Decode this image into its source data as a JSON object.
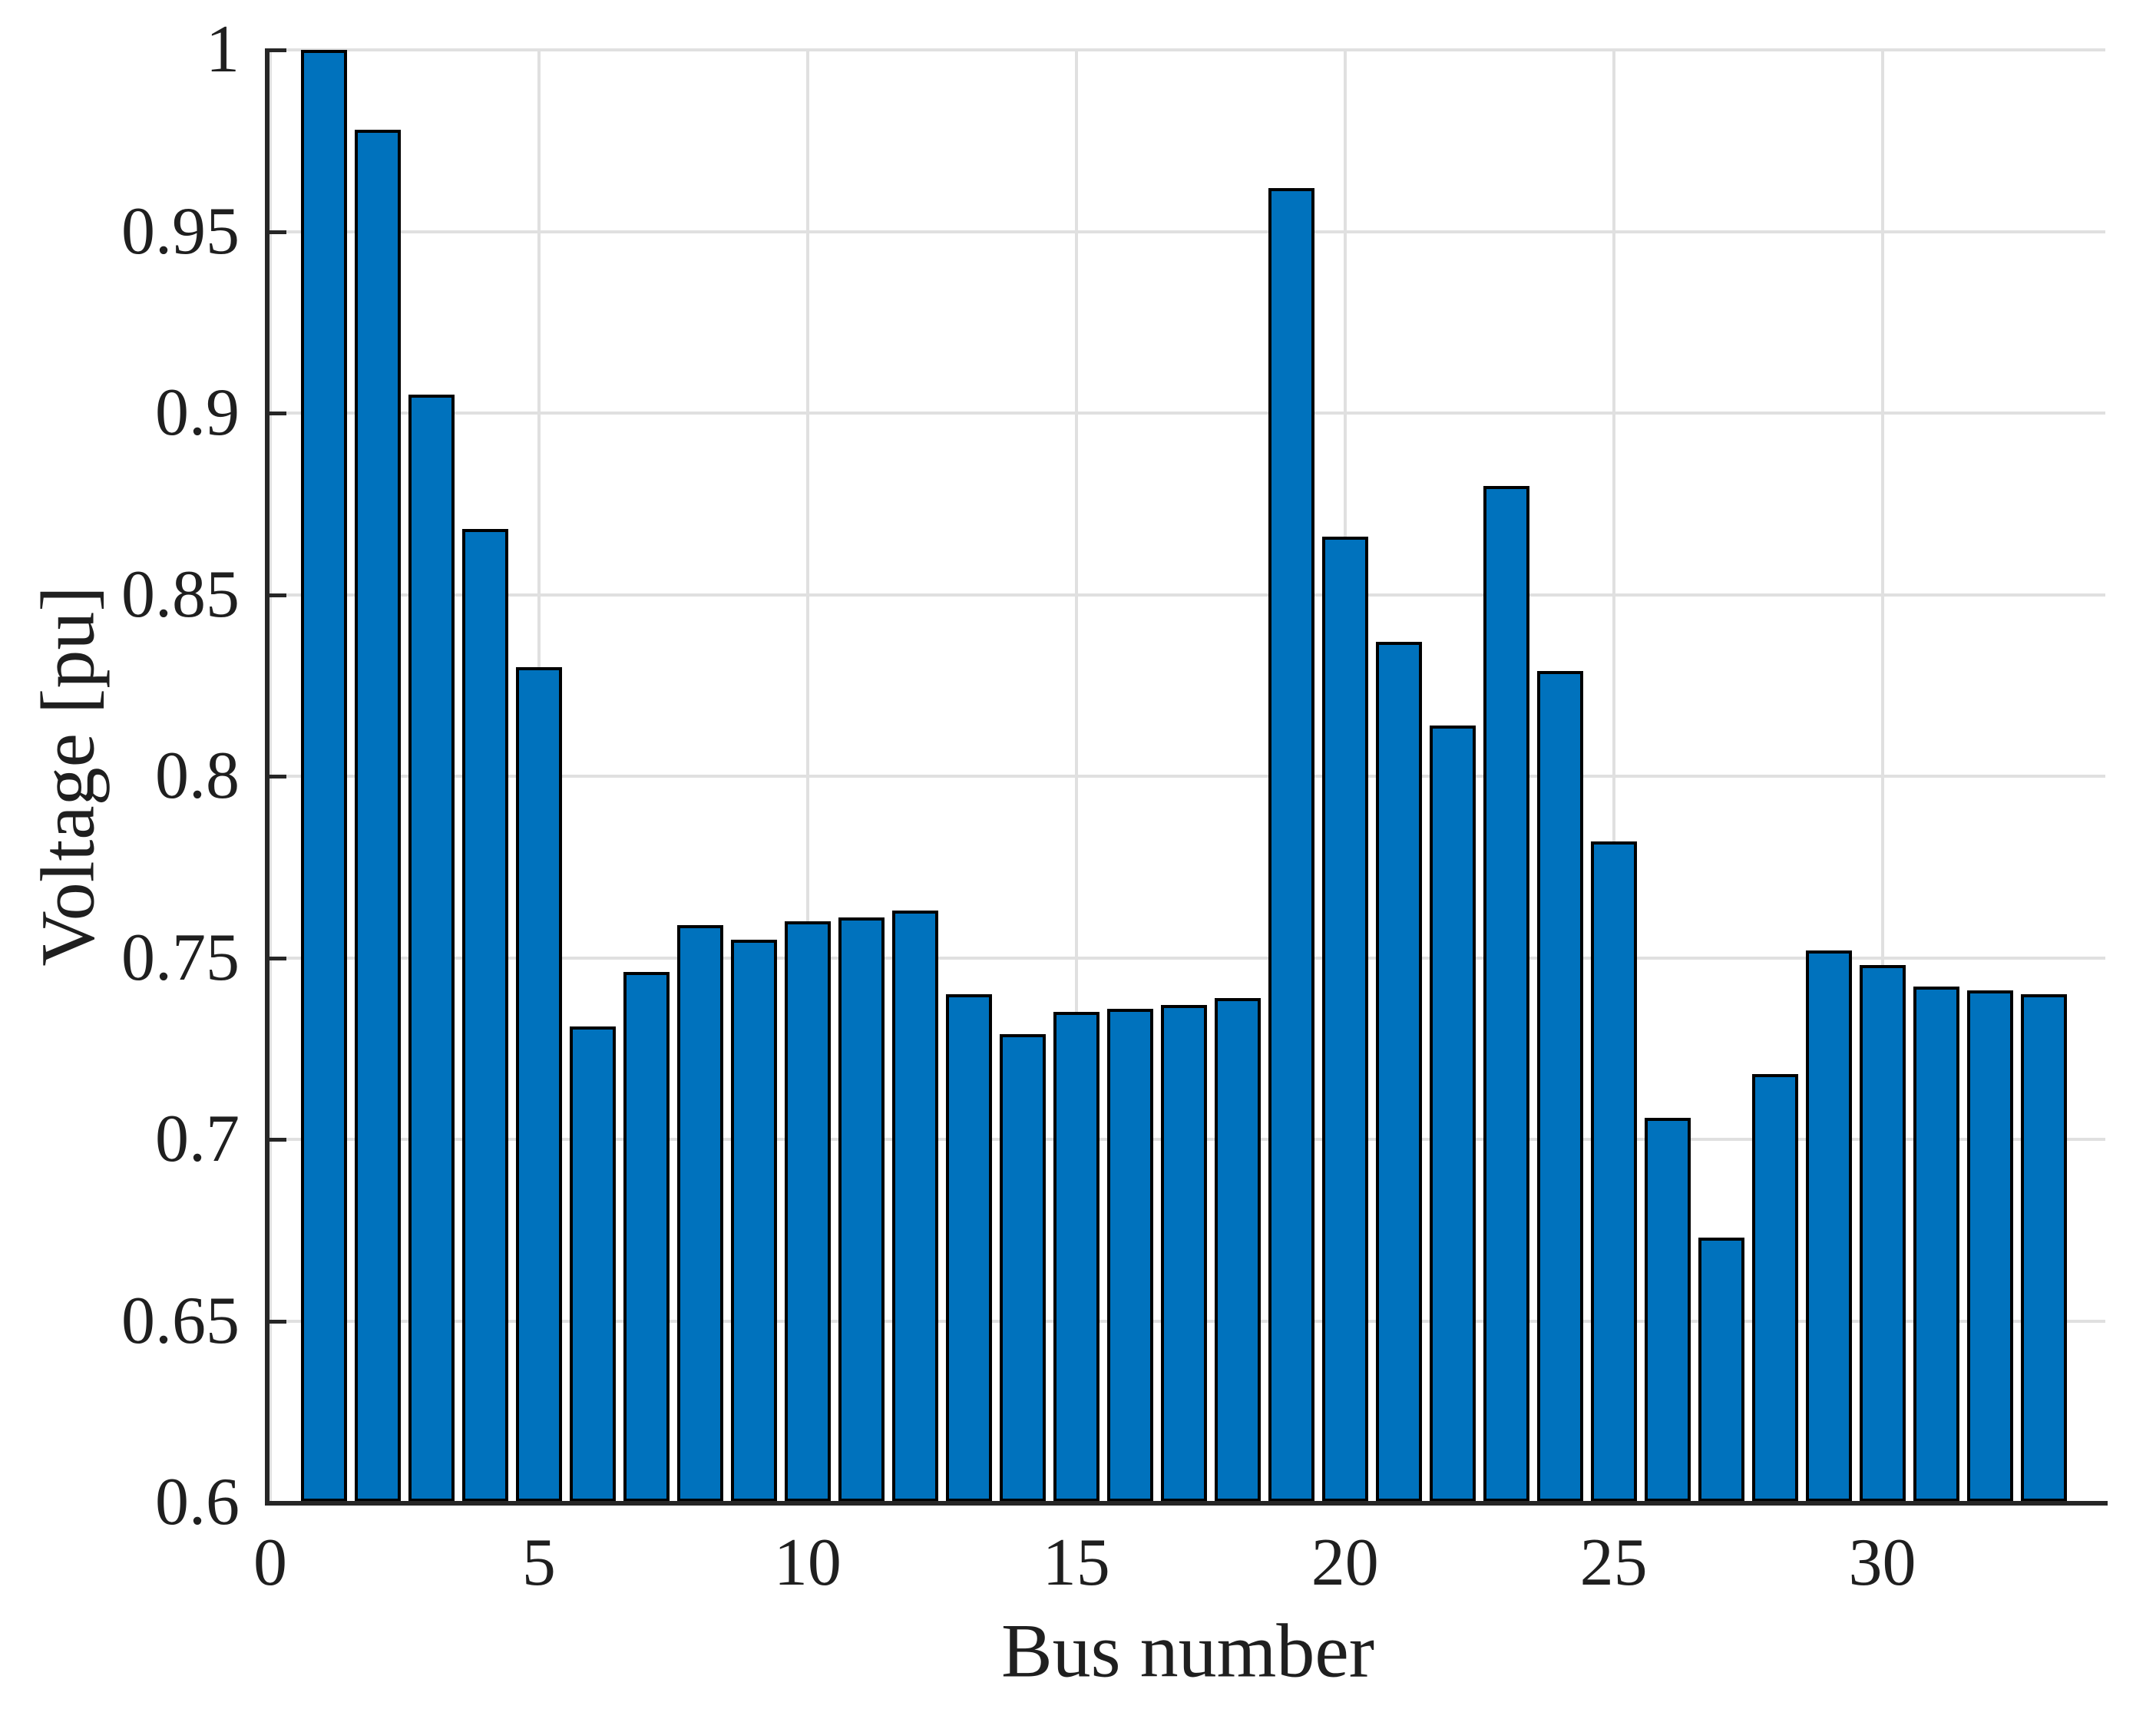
{
  "chart_data": {
    "type": "bar",
    "title": "",
    "xlabel": "Bus number",
    "ylabel": "Voltage [pu]",
    "categories": [
      1,
      2,
      3,
      4,
      5,
      6,
      7,
      8,
      9,
      10,
      11,
      12,
      13,
      14,
      15,
      16,
      17,
      18,
      19,
      20,
      21,
      22,
      23,
      24,
      25,
      26,
      27,
      28,
      29,
      30,
      31,
      32,
      33
    ],
    "values": [
      1.0,
      0.978,
      0.905,
      0.868,
      0.83,
      0.731,
      0.746,
      0.759,
      0.755,
      0.76,
      0.761,
      0.763,
      0.74,
      0.729,
      0.735,
      0.736,
      0.737,
      0.739,
      0.962,
      0.866,
      0.837,
      0.814,
      0.88,
      0.829,
      0.782,
      0.706,
      0.673,
      0.718,
      0.752,
      0.748,
      0.742,
      0.741,
      0.74
    ],
    "xlim": [
      0,
      34.15
    ],
    "ylim": [
      0.6,
      1.0
    ],
    "xticks": [
      {
        "value": 0,
        "label": "0"
      },
      {
        "value": 5,
        "label": "5"
      },
      {
        "value": 10,
        "label": "10"
      },
      {
        "value": 15,
        "label": "15"
      },
      {
        "value": 20,
        "label": "20"
      },
      {
        "value": 25,
        "label": "25"
      },
      {
        "value": 30,
        "label": "30"
      }
    ],
    "yticks": [
      {
        "value": 0.6,
        "label": "0.6"
      },
      {
        "value": 0.65,
        "label": "0.65"
      },
      {
        "value": 0.7,
        "label": "0.7"
      },
      {
        "value": 0.75,
        "label": "0.75"
      },
      {
        "value": 0.8,
        "label": "0.8"
      },
      {
        "value": 0.85,
        "label": "0.85"
      },
      {
        "value": 0.9,
        "label": "0.9"
      },
      {
        "value": 0.95,
        "label": "0.95"
      },
      {
        "value": 1.0,
        "label": "1"
      }
    ],
    "grid": true,
    "legend": null,
    "bar_fill_color": "#0072BD",
    "bar_edge_color": "#000000",
    "grid_color": "#e0e0e0",
    "axis_color": "#262626"
  }
}
